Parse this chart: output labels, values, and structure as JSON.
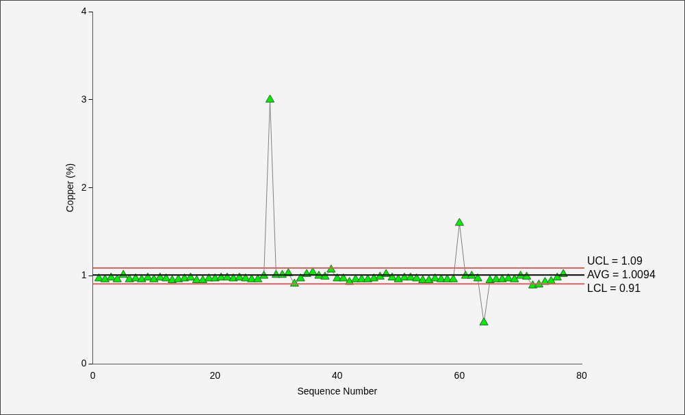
{
  "chart_data": {
    "type": "line",
    "xlabel": "Sequence Number",
    "ylabel": "Copper (%)",
    "x": [
      1,
      2,
      3,
      4,
      5,
      6,
      7,
      8,
      9,
      10,
      11,
      12,
      13,
      14,
      15,
      16,
      17,
      18,
      19,
      20,
      21,
      22,
      23,
      24,
      25,
      26,
      27,
      28,
      29,
      30,
      31,
      32,
      33,
      34,
      35,
      36,
      37,
      38,
      39,
      40,
      41,
      42,
      43,
      44,
      45,
      46,
      47,
      48,
      49,
      50,
      51,
      52,
      53,
      54,
      55,
      56,
      57,
      58,
      59,
      60,
      61,
      62,
      63,
      64,
      65,
      66,
      67,
      68,
      69,
      70,
      71,
      72,
      73,
      74,
      75,
      76,
      77
    ],
    "series": [
      {
        "color": "#00ee00",
        "values": [
          0.97,
          0.96,
          0.98,
          0.96,
          1.01,
          0.96,
          0.97,
          0.96,
          0.98,
          0.96,
          0.98,
          0.97,
          0.95,
          0.96,
          0.97,
          0.98,
          0.95,
          0.95,
          0.97,
          0.97,
          0.98,
          0.98,
          0.97,
          0.98,
          0.97,
          0.96,
          0.96,
          1.0,
          3.0,
          1.01,
          1.01,
          1.03,
          0.91,
          0.97,
          1.02,
          1.04,
          1.0,
          0.99,
          1.07,
          0.97,
          0.97,
          0.93,
          0.96,
          0.96,
          0.96,
          0.97,
          0.99,
          1.02,
          0.98,
          0.96,
          0.98,
          0.98,
          0.97,
          0.95,
          0.95,
          0.97,
          0.96,
          0.96,
          0.96,
          1.6,
          1.0,
          1.0,
          0.97,
          0.47,
          0.95,
          0.96,
          0.96,
          0.97,
          0.96,
          1.0,
          0.99,
          0.89,
          0.9,
          0.93,
          0.94,
          0.98,
          1.02
        ]
      }
    ],
    "xlim": [
      0,
      80
    ],
    "xticks": [
      0,
      20,
      40,
      60,
      80
    ],
    "ylim": [
      0,
      4
    ],
    "yticks": [
      0,
      1,
      2,
      3,
      4
    ],
    "grid": false,
    "legend": false,
    "marker": "triangle",
    "line_style": "solid",
    "ref_lines": [
      {
        "axis": "y",
        "value": 1.09,
        "label": "UCL = 1.09",
        "color": "#e06060"
      },
      {
        "axis": "y",
        "value": 1.0094,
        "label": "AVG = 1.0094",
        "color": "#000000"
      },
      {
        "axis": "y",
        "value": 0.91,
        "label": "LCL = 0.91",
        "color": "#e06060"
      }
    ]
  }
}
